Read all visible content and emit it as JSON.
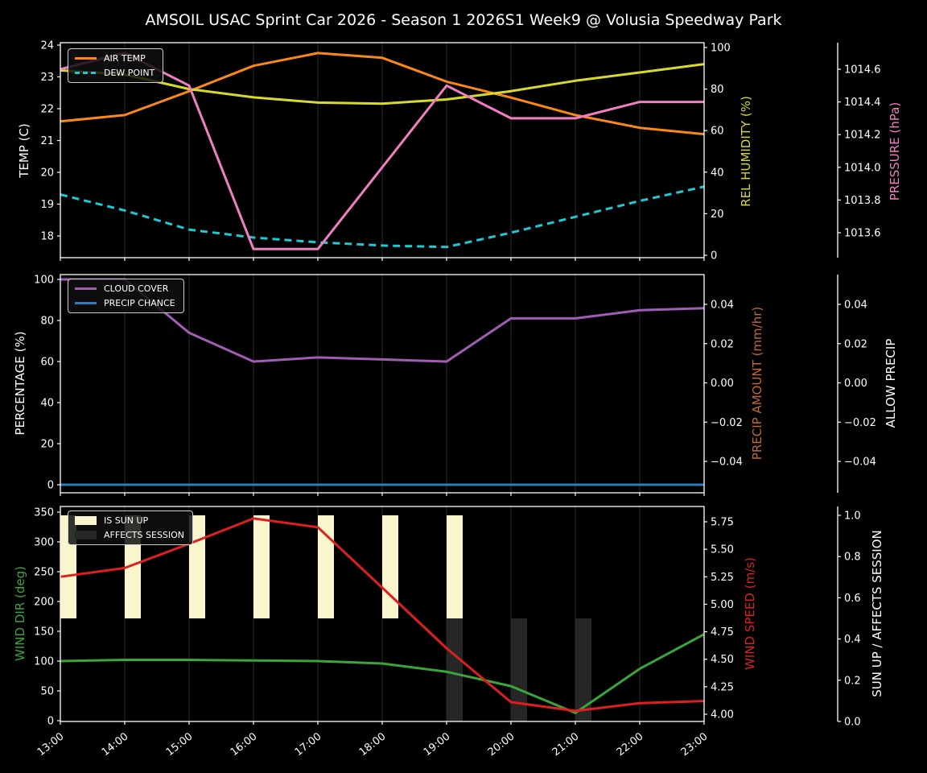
{
  "title": "AMSOIL USAC Sprint Car 2026 - Season 1 2026S1 Week9 @ Volusia Speedway Park",
  "colors": {
    "air_temp": "#fb8716",
    "dew_point": "#1fc8d2",
    "rel_humidity": "#d8da2b",
    "pressure": "#f07fc2",
    "cloud_cover": "#a15cb5",
    "precip_chance": "#3579b8",
    "precip_amount_label": "#bf6a33",
    "wind_dir": "#3aa53a",
    "wind_speed": "#df1f1f",
    "sun_up": "#f9f6cd",
    "affects_session": "#262626",
    "axis_text": "#ffffff",
    "grid": "#242424"
  },
  "x_axis": {
    "hours": [
      13,
      14,
      15,
      16,
      17,
      18,
      19,
      20,
      21,
      22,
      23
    ],
    "tick_labels": [
      "13:00",
      "14:00",
      "15:00",
      "16:00",
      "17:00",
      "18:00",
      "19:00",
      "20:00",
      "21:00",
      "22:00",
      "23:00"
    ]
  },
  "chart_data": [
    {
      "type": "line",
      "name": "temperature-panel",
      "axes": {
        "left": {
          "label": "TEMP (C)",
          "ticks": [
            {
              "v": 18,
              "t": "18"
            },
            {
              "v": 19,
              "t": "19"
            },
            {
              "v": 20,
              "t": "20"
            },
            {
              "v": 21,
              "t": "21"
            },
            {
              "v": 22,
              "t": "22"
            },
            {
              "v": 23,
              "t": "23"
            },
            {
              "v": 24,
              "t": "24"
            }
          ]
        },
        "right_inner": {
          "label": "REL HUMIDITY (%)",
          "ticks": [
            {
              "v": 0,
              "t": "0"
            },
            {
              "v": 20,
              "t": "20"
            },
            {
              "v": 40,
              "t": "40"
            },
            {
              "v": 60,
              "t": "60"
            },
            {
              "v": 80,
              "t": "80"
            },
            {
              "v": 100,
              "t": "100"
            }
          ]
        },
        "right_outer": {
          "label": "PRESSURE (hPa)",
          "ticks": [
            {
              "v": 1013.6,
              "t": "1013.6"
            },
            {
              "v": 1013.8,
              "t": "1013.8"
            },
            {
              "v": 1014.0,
              "t": "1014.0"
            },
            {
              "v": 1014.2,
              "t": "1014.2"
            },
            {
              "v": 1014.4,
              "t": "1014.4"
            },
            {
              "v": 1014.6,
              "t": "1014.6"
            }
          ]
        }
      },
      "series": [
        {
          "name": "AIR TEMP",
          "axis": "left",
          "color_key": "air_temp",
          "dash": false,
          "values": [
            21.6,
            21.8,
            22.55,
            23.35,
            23.75,
            23.6,
            22.85,
            22.35,
            21.8,
            21.4,
            21.2
          ]
        },
        {
          "name": "DEW POINT",
          "axis": "left",
          "color_key": "dew_point",
          "dash": true,
          "values": [
            19.3,
            18.8,
            18.2,
            17.95,
            17.8,
            17.7,
            17.65,
            18.1,
            18.6,
            19.1,
            19.55
          ]
        },
        {
          "name": "REL HUMIDITY",
          "axis": "right_inner",
          "color_key": "rel_humidity",
          "dash": false,
          "values": [
            89,
            87,
            80,
            76,
            73.5,
            73,
            75,
            79,
            84,
            88,
            92
          ]
        },
        {
          "name": "PRESSURE",
          "axis": "right_outer",
          "color_key": "pressure",
          "dash": false,
          "values": [
            1014.6,
            1014.7,
            1014.5,
            1013.5,
            1013.5,
            1014.0,
            1014.5,
            1014.3,
            1014.3,
            1014.4,
            1014.4
          ]
        }
      ],
      "legend": [
        {
          "label": "AIR TEMP",
          "swatch": "line",
          "color_key": "air_temp",
          "dash": false
        },
        {
          "label": "DEW POINT",
          "swatch": "line",
          "color_key": "dew_point",
          "dash": true
        }
      ]
    },
    {
      "type": "line",
      "name": "precipitation-panel",
      "axes": {
        "left": {
          "label": "PERCENTAGE (%)",
          "ticks": [
            {
              "v": 0,
              "t": "0"
            },
            {
              "v": 20,
              "t": "20"
            },
            {
              "v": 40,
              "t": "40"
            },
            {
              "v": 60,
              "t": "60"
            },
            {
              "v": 80,
              "t": "80"
            },
            {
              "v": 100,
              "t": "100"
            }
          ]
        },
        "right_inner": {
          "label": "PRECIP AMOUNT (mm/hr)",
          "ticks": [
            {
              "v": -0.04,
              "t": "−0.04"
            },
            {
              "v": -0.02,
              "t": "−0.02"
            },
            {
              "v": 0,
              "t": "0.00"
            },
            {
              "v": 0.02,
              "t": "0.02"
            },
            {
              "v": 0.04,
              "t": "0.04"
            }
          ]
        },
        "right_outer": {
          "label": "ALLOW PRECIP",
          "ticks": [
            {
              "v": -0.04,
              "t": "−0.04"
            },
            {
              "v": -0.02,
              "t": "−0.02"
            },
            {
              "v": 0,
              "t": "0.00"
            },
            {
              "v": 0.02,
              "t": "0.02"
            },
            {
              "v": 0.04,
              "t": "0.04"
            }
          ]
        }
      },
      "series": [
        {
          "name": "CLOUD COVER",
          "axis": "left",
          "color_key": "cloud_cover",
          "dash": false,
          "values": [
            100,
            100,
            74,
            60,
            62,
            61,
            60,
            81,
            81,
            85,
            86
          ]
        },
        {
          "name": "PRECIP CHANCE",
          "axis": "left",
          "color_key": "precip_chance",
          "dash": false,
          "values": [
            0,
            0,
            0,
            0,
            0,
            0,
            0,
            0,
            0,
            0,
            0
          ]
        }
      ],
      "legend": [
        {
          "label": "CLOUD COVER",
          "swatch": "line",
          "color_key": "cloud_cover",
          "dash": false
        },
        {
          "label": "PRECIP CHANCE",
          "swatch": "line",
          "color_key": "precip_chance",
          "dash": false
        }
      ]
    },
    {
      "type": "line-bar",
      "name": "wind-sun-panel",
      "axes": {
        "left": {
          "label": "WIND DIR (deg)",
          "ticks": [
            {
              "v": 0,
              "t": "0"
            },
            {
              "v": 50,
              "t": "50"
            },
            {
              "v": 100,
              "t": "100"
            },
            {
              "v": 150,
              "t": "150"
            },
            {
              "v": 200,
              "t": "200"
            },
            {
              "v": 250,
              "t": "250"
            },
            {
              "v": 300,
              "t": "300"
            },
            {
              "v": 350,
              "t": "350"
            }
          ]
        },
        "right_inner": {
          "label": "WIND SPEED (m/s)",
          "ticks": [
            {
              "v": 4.0,
              "t": "4.00"
            },
            {
              "v": 4.25,
              "t": "4.25"
            },
            {
              "v": 4.5,
              "t": "4.50"
            },
            {
              "v": 4.75,
              "t": "4.75"
            },
            {
              "v": 5.0,
              "t": "5.00"
            },
            {
              "v": 5.25,
              "t": "5.25"
            },
            {
              "v": 5.5,
              "t": "5.50"
            },
            {
              "v": 5.75,
              "t": "5.75"
            }
          ]
        },
        "right_outer": {
          "label": "SUN UP / AFFECTS SESSION",
          "ticks": [
            {
              "v": 0,
              "t": "0.0"
            },
            {
              "v": 0.2,
              "t": "0.2"
            },
            {
              "v": 0.4,
              "t": "0.4"
            },
            {
              "v": 0.6,
              "t": "0.6"
            },
            {
              "v": 0.8,
              "t": "0.8"
            },
            {
              "v": 1.0,
              "t": "1.0"
            }
          ]
        }
      },
      "bars": [
        {
          "name": "IS SUN UP",
          "color_key": "sun_up",
          "axis": "right_outer",
          "hours": [
            13,
            14,
            15,
            16,
            17,
            18,
            19
          ],
          "from": 0.5,
          "to": 1.0
        },
        {
          "name": "AFFECTS SESSION",
          "color_key": "affects_session",
          "axis": "right_outer",
          "hours": [
            19,
            20,
            21
          ],
          "from": 0.0,
          "to": 0.5
        }
      ],
      "series": [
        {
          "name": "WIND DIR",
          "axis": "left",
          "color_key": "wind_dir",
          "dash": false,
          "values": [
            100,
            102,
            102,
            101,
            100,
            96,
            82,
            58,
            13,
            87,
            145
          ]
        },
        {
          "name": "WIND SPEED",
          "axis": "right_inner",
          "color_key": "wind_speed",
          "dash": false,
          "values": [
            5.25,
            5.33,
            5.55,
            5.78,
            5.7,
            5.15,
            4.6,
            4.11,
            4.03,
            4.1,
            4.12
          ]
        }
      ],
      "legend": [
        {
          "label": "IS SUN UP",
          "swatch": "patch",
          "color_key": "sun_up",
          "dash": false
        },
        {
          "label": "AFFECTS SESSION",
          "swatch": "patch",
          "color_key": "affects_session",
          "dash": false
        }
      ]
    }
  ]
}
